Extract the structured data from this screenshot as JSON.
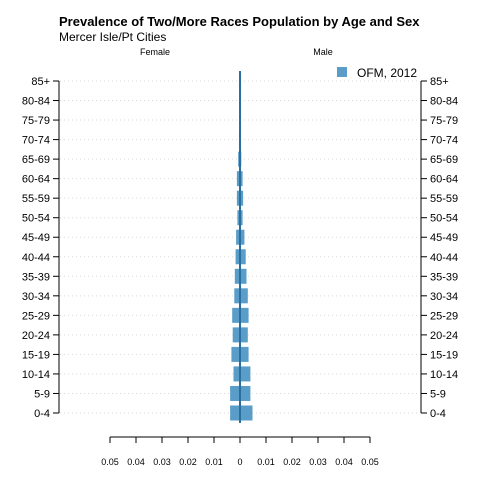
{
  "chart_data": {
    "type": "bar",
    "orientation": "horizontal",
    "title": "Prevalence of Two/More Races Population by Age and Sex",
    "subtitle": "Mercer Isle/Pt Cities",
    "left_label": "Female",
    "right_label": "Male",
    "categories": [
      "0-4",
      "5-9",
      "10-14",
      "15-19",
      "20-24",
      "25-29",
      "30-34",
      "35-39",
      "40-44",
      "45-49",
      "50-54",
      "55-59",
      "60-64",
      "65-69",
      "70-74",
      "75-79",
      "80-84",
      "85+"
    ],
    "series": [
      {
        "name": "OFM, 2012",
        "color": "#5a9dc8",
        "female": [
          0.0038,
          0.0038,
          0.0025,
          0.0033,
          0.0028,
          0.003,
          0.0022,
          0.002,
          0.0017,
          0.0015,
          0.001,
          0.0012,
          0.0012,
          0.0007,
          0.0004,
          0.0003,
          0.0003,
          0.0004
        ],
        "male": [
          0.0048,
          0.004,
          0.004,
          0.0033,
          0.003,
          0.0033,
          0.003,
          0.0025,
          0.0022,
          0.0017,
          0.001,
          0.0012,
          0.001,
          0.0005,
          0.0003,
          0.0003,
          0.0003,
          0.0004
        ]
      }
    ],
    "x_ticks": [
      "0.05",
      "0.04",
      "0.03",
      "0.02",
      "0.01",
      "0",
      "0.01",
      "0.02",
      "0.03",
      "0.04",
      "0.05"
    ],
    "xlim": [
      -0.05,
      0.05
    ],
    "grid": "horizontal dotted",
    "legend_position": "top-right"
  }
}
